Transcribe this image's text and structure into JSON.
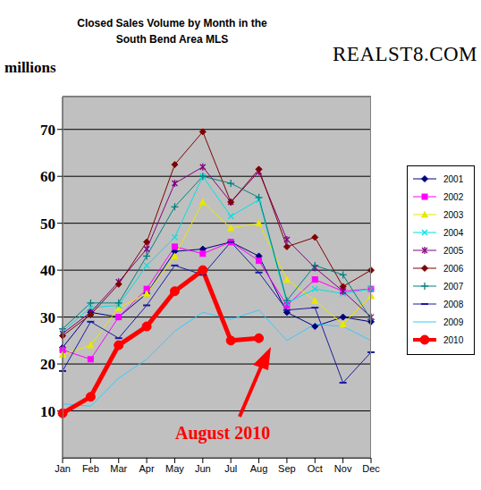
{
  "chart_data": {
    "type": "line",
    "title": "Closed Sales Volume by Month in the South Bend Area MLS",
    "subtitle": "REALST8.COM",
    "y_label": "millions",
    "annotation": "August 2010",
    "categories": [
      "Jan",
      "Feb",
      "Mar",
      "Apr",
      "May",
      "Jun",
      "Jul",
      "Aug",
      "Sep",
      "Oct",
      "Nov",
      "Dec"
    ],
    "ylim": [
      0,
      77
    ],
    "yticks": [
      10,
      20,
      30,
      40,
      50,
      60,
      70
    ],
    "grid": true,
    "legend": "right",
    "series": [
      {
        "name": "2001",
        "color": "#000080",
        "marker": "diamond",
        "line_style": "solid",
        "values": [
          23.5,
          31,
          30,
          35,
          44,
          44.5,
          46,
          43,
          31,
          28,
          30,
          29
        ]
      },
      {
        "name": "2002",
        "color": "#ff00ff",
        "marker": "square",
        "line_style": "solid",
        "values": [
          23,
          21,
          30,
          36,
          45,
          43.5,
          46,
          42,
          32.5,
          38,
          35.5,
          36
        ]
      },
      {
        "name": "2003",
        "color": "#e8e800",
        "marker": "triangle",
        "line_style": "solid",
        "values": [
          22,
          24,
          32,
          35,
          43,
          54.5,
          49,
          50,
          38,
          33.5,
          28.5,
          34.5
        ]
      },
      {
        "name": "2004",
        "color": "#00e0e0",
        "marker": "x",
        "line_style": "solid",
        "values": [
          27,
          32,
          32.5,
          41,
          47,
          60,
          51.5,
          55,
          33,
          36,
          35,
          36
        ]
      },
      {
        "name": "2005",
        "color": "#800080",
        "marker": "star",
        "line_style": "solid",
        "values": [
          26.5,
          31,
          37.5,
          44.5,
          58.5,
          62,
          54.5,
          61,
          46.5,
          40.5,
          35.5,
          30
        ]
      },
      {
        "name": "2006",
        "color": "#800000",
        "marker": "diamond",
        "line_style": "solid",
        "values": [
          26,
          30.5,
          37,
          46,
          62.5,
          69.5,
          54.5,
          61.5,
          45,
          47,
          36.5,
          40
        ]
      },
      {
        "name": "2007",
        "color": "#008080",
        "marker": "cross",
        "line_style": "solid",
        "values": [
          27.5,
          33,
          33,
          43,
          53.5,
          60,
          58.5,
          55.5,
          33.5,
          41,
          39,
          29.5
        ]
      },
      {
        "name": "2008",
        "color": "#1a1aa0",
        "marker": "dash",
        "line_style": "solid",
        "values": [
          18.5,
          29,
          25.5,
          32.5,
          41,
          39,
          46,
          39.5,
          31.5,
          32,
          16,
          22.5
        ]
      },
      {
        "name": "2009",
        "color": "#33ccff",
        "marker": "none",
        "line_style": "solid",
        "values": [
          11.5,
          11,
          17,
          21,
          27,
          31,
          29.5,
          31.5,
          25,
          28.5,
          28,
          25
        ]
      },
      {
        "name": "2010",
        "color": "#ff0000",
        "marker": "circle",
        "line_style": "thick",
        "values": [
          9.5,
          13,
          24,
          28,
          35.5,
          40,
          25,
          25.5,
          null,
          null,
          null,
          null
        ]
      }
    ]
  }
}
